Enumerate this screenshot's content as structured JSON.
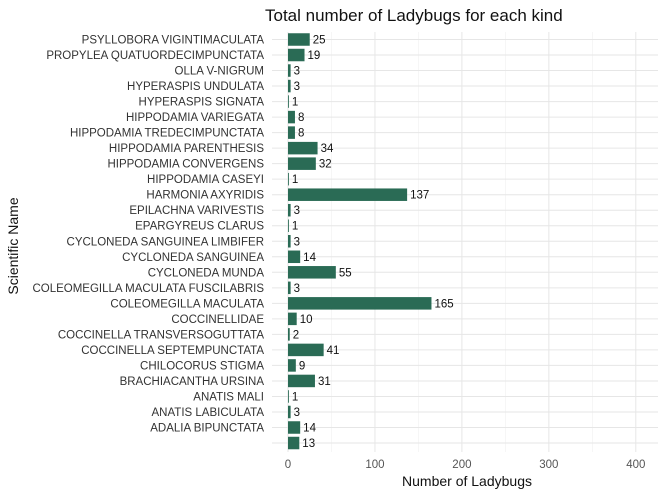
{
  "chart_data": {
    "type": "bar",
    "orientation": "horizontal",
    "title": "Total number of Ladybugs for each kind",
    "xlabel": "Number of Ladybugs",
    "ylabel": "Scientific Name",
    "xlim": [
      0,
      420
    ],
    "xticks": [
      0,
      100,
      200,
      300,
      400
    ],
    "grid": true,
    "legend": "none",
    "bar_color": "#2a6b55",
    "categories": [
      "PSYLLOBORA VIGINTIMACULATA",
      "PROPYLEA QUATUORDECIMPUNCTATA",
      "OLLA V-NIGRUM",
      "HYPERASPIS UNDULATA",
      "HYPERASPIS SIGNATA",
      "HIPPODAMIA VARIEGATA",
      "HIPPODAMIA TREDECIMPUNCTATA",
      "HIPPODAMIA PARENTHESIS",
      "HIPPODAMIA CONVERGENS",
      "HIPPODAMIA CASEYI",
      "HARMONIA AXYRIDIS",
      "EPILACHNA VARIVESTIS",
      "EPARGYREUS CLARUS",
      "CYCLONEDA SANGUINEA LIMBIFER",
      "CYCLONEDA SANGUINEA",
      "CYCLONEDA MUNDA",
      "COLEOMEGILLA MACULATA FUSCILABRIS",
      "COLEOMEGILLA MACULATA",
      "COCCINELLIDAE",
      "COCCINELLA TRANSVERSOGUTTATA",
      "COCCINELLA SEPTEMPUNCTATA",
      "CHILOCORUS STIGMA",
      "BRACHIACANTHA URSINA",
      "ANATIS MALI",
      "ANATIS LABICULATA",
      "ADALIA BIPUNCTATA",
      ""
    ],
    "values": [
      25,
      19,
      3,
      3,
      1,
      8,
      8,
      34,
      32,
      1,
      137,
      3,
      1,
      3,
      14,
      55,
      3,
      165,
      10,
      2,
      41,
      9,
      31,
      1,
      3,
      14,
      13
    ]
  }
}
